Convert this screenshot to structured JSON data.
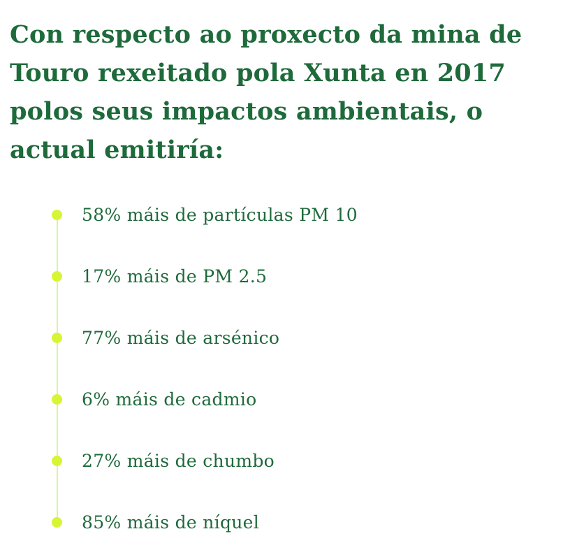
{
  "heading": "Con respecto ao proxecto da mina de Touro rexeitado pola Xunta en 2017 polos seus impactos ambientais, o actual emitiría:",
  "colors": {
    "text": "#1e6a3b",
    "bullet": "#d8f533",
    "timeline_line": "#d8f5a0",
    "background": "#ffffff"
  },
  "items": [
    {
      "label": "58% máis de partículas PM 10"
    },
    {
      "label": "17% máis de PM 2.5"
    },
    {
      "label": "77% máis de arsénico"
    },
    {
      "label": "6% máis de cadmio"
    },
    {
      "label": "27% máis de chumbo"
    },
    {
      "label": "85% máis de níquel"
    }
  ]
}
